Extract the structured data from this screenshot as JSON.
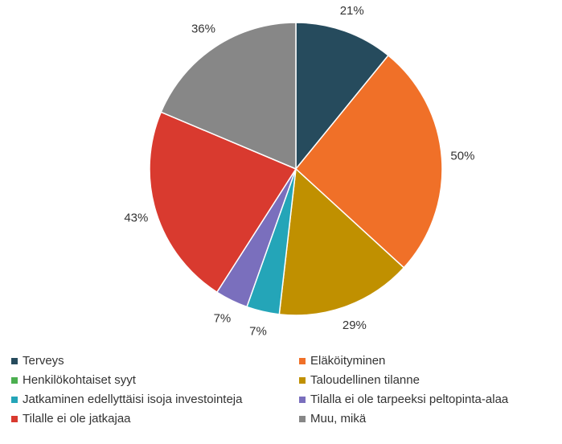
{
  "chart_data": {
    "type": "pie",
    "categories": [
      "Terveys",
      "Eläköityminen",
      "Henkilökohtaiset syyt",
      "Taloudellinen tilanne",
      "Jatkaminen edellyttäisi isoja investointeja",
      "Tilalla ei ole tarpeeksi peltopinta-alaa",
      "Tilalle ei ole jatkajaa",
      "Muu, mikä"
    ],
    "values": [
      21,
      50,
      0,
      29,
      7,
      7,
      43,
      36
    ],
    "value_labels": [
      "21%",
      "50%",
      null,
      "29%",
      "7%",
      "7%",
      "43%",
      "36%"
    ],
    "colors": [
      "#264b5d",
      "#f07028",
      "#4caf50",
      "#c09000",
      "#24a5b8",
      "#7a6fbd",
      "#d93a2f",
      "#878787"
    ],
    "legend": "bottom"
  }
}
